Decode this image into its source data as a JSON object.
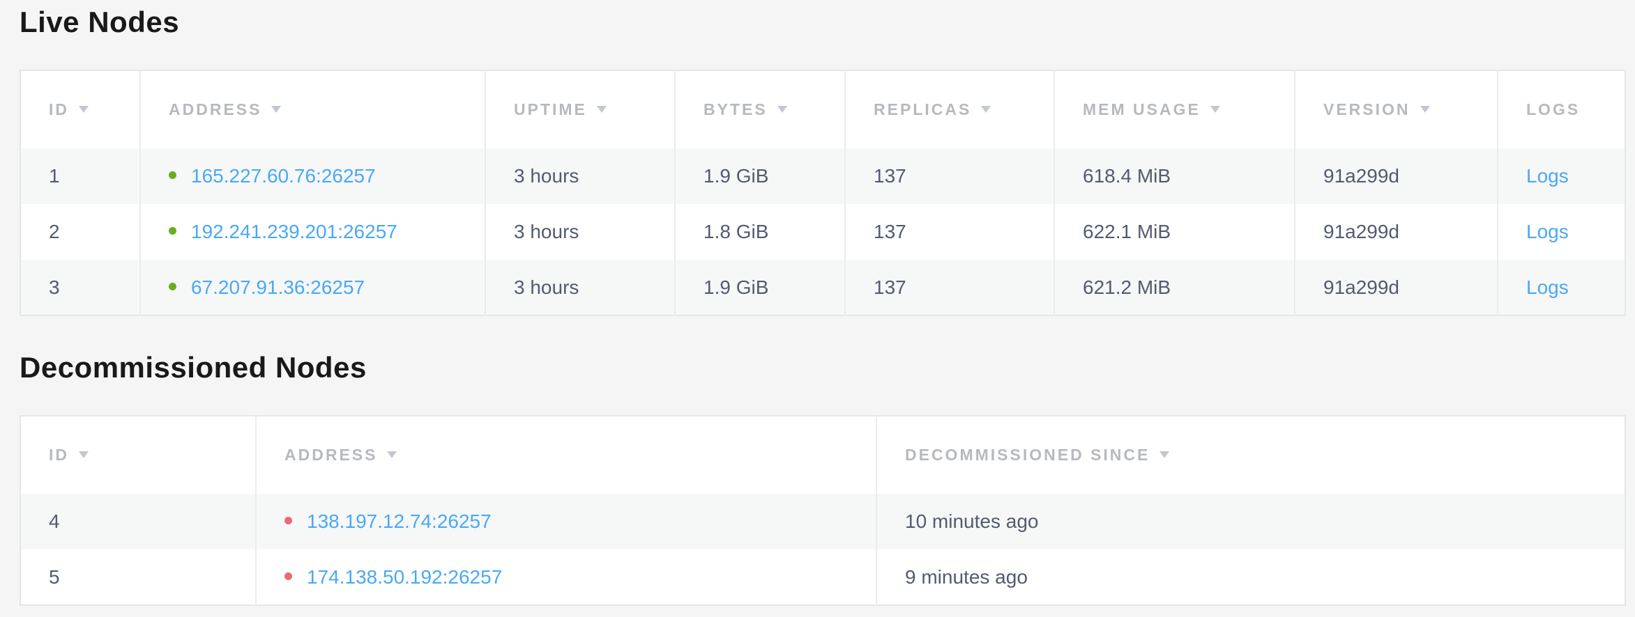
{
  "colors": {
    "page_background": "#f5f5f5",
    "row_alt_background": "#f6f7f7",
    "header_text": "#b6b9be",
    "body_text": "#525b6f",
    "link": "#4aa8f5",
    "live_dot": "#6aae1f",
    "decommissioned_dot": "#ea6a75",
    "title_text": "#191919",
    "table_border": "#e3e5e7"
  },
  "live_nodes": {
    "title": "Live Nodes",
    "columns": [
      {
        "label": "ID",
        "sort_arrow": true
      },
      {
        "label": "ADDRESS",
        "sort_arrow": true
      },
      {
        "label": "UPTIME",
        "sort_arrow": true
      },
      {
        "label": "BYTES",
        "sort_arrow": true
      },
      {
        "label": "REPLICAS",
        "sort_arrow": true
      },
      {
        "label": "MEM USAGE",
        "sort_arrow": true
      },
      {
        "label": "VERSION",
        "sort_arrow": true
      },
      {
        "label": "LOGS",
        "sort_arrow": false
      }
    ],
    "rows": [
      {
        "id": "1",
        "status": "live",
        "address": "165.227.60.76:26257",
        "uptime": "3 hours",
        "bytes": "1.9 GiB",
        "replicas": "137",
        "mem_usage": "618.4 MiB",
        "version": "91a299d",
        "logs_label": "Logs"
      },
      {
        "id": "2",
        "status": "live",
        "address": "192.241.239.201:26257",
        "uptime": "3 hours",
        "bytes": "1.8 GiB",
        "replicas": "137",
        "mem_usage": "622.1 MiB",
        "version": "91a299d",
        "logs_label": "Logs"
      },
      {
        "id": "3",
        "status": "live",
        "address": "67.207.91.36:26257",
        "uptime": "3 hours",
        "bytes": "1.9 GiB",
        "replicas": "137",
        "mem_usage": "621.2 MiB",
        "version": "91a299d",
        "logs_label": "Logs"
      }
    ]
  },
  "decommissioned_nodes": {
    "title": "Decommissioned Nodes",
    "columns": [
      {
        "label": "ID",
        "sort_arrow": true
      },
      {
        "label": "ADDRESS",
        "sort_arrow": true
      },
      {
        "label": "DECOMMISSIONED SINCE",
        "sort_arrow": true
      }
    ],
    "rows": [
      {
        "id": "4",
        "status": "decommissioned",
        "address": "138.197.12.74:26257",
        "since": "10 minutes ago"
      },
      {
        "id": "5",
        "status": "decommissioned",
        "address": "174.138.50.192:26257",
        "since": "9 minutes ago"
      }
    ]
  }
}
